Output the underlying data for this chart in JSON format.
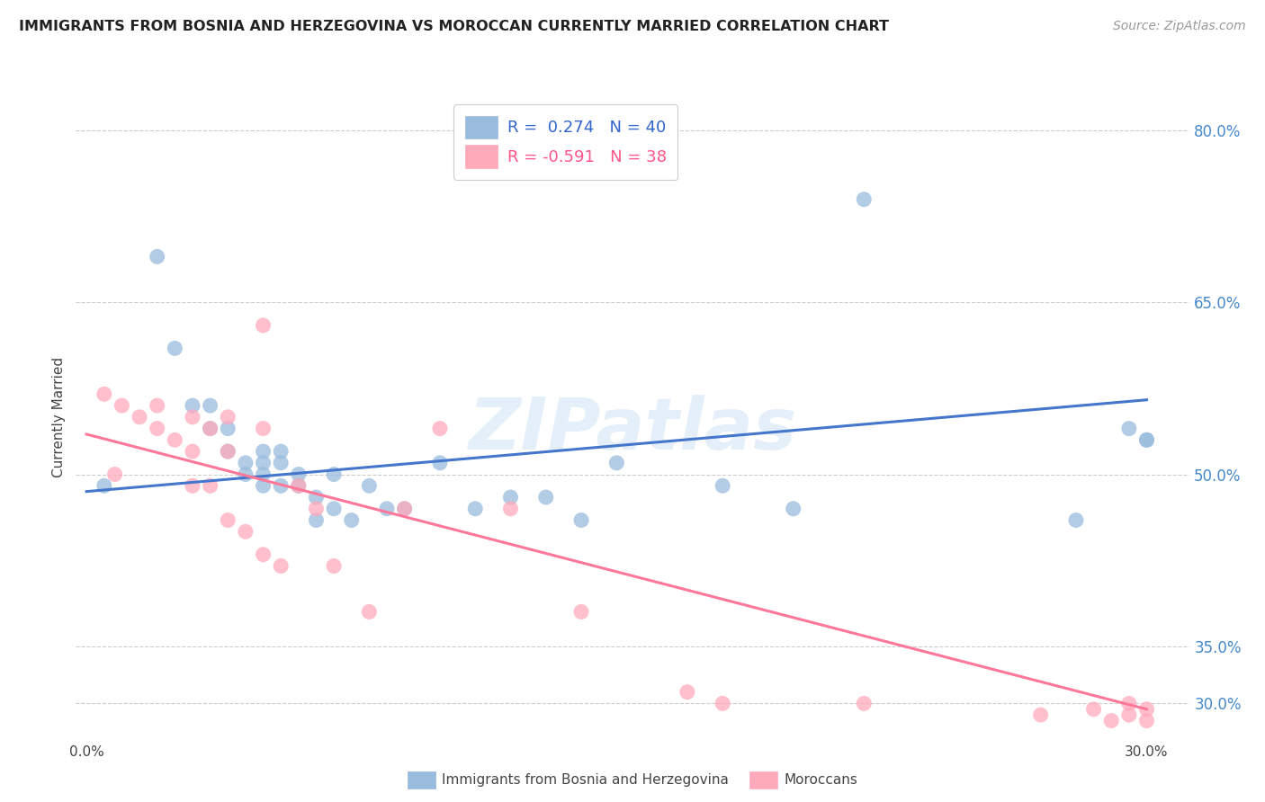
{
  "title": "IMMIGRANTS FROM BOSNIA AND HERZEGOVINA VS MOROCCAN CURRENTLY MARRIED CORRELATION CHART",
  "source": "Source: ZipAtlas.com",
  "ylabel": "Currently Married",
  "ylim": [
    0.27,
    0.83
  ],
  "xlim": [
    -0.003,
    0.312
  ],
  "yticks": [
    0.3,
    0.35,
    0.5,
    0.65,
    0.8
  ],
  "ytick_labels": [
    "30.0%",
    "35.0%",
    "50.0%",
    "65.0%",
    "80.0%"
  ],
  "xticks": [
    0.0,
    0.05,
    0.1,
    0.15,
    0.2,
    0.25,
    0.3
  ],
  "xtick_labels": [
    "0.0%",
    "",
    "",
    "",
    "",
    "",
    "30.0%"
  ],
  "color_blue": "#99BBDD",
  "color_pink": "#FFAABB",
  "line_blue": "#4477CC",
  "line_pink": "#FF7799",
  "watermark": "ZIPatlas",
  "blue_scatter_x": [
    0.005,
    0.02,
    0.025,
    0.03,
    0.035,
    0.035,
    0.04,
    0.04,
    0.045,
    0.045,
    0.05,
    0.05,
    0.05,
    0.05,
    0.055,
    0.055,
    0.055,
    0.06,
    0.06,
    0.065,
    0.065,
    0.07,
    0.07,
    0.075,
    0.08,
    0.085,
    0.09,
    0.1,
    0.11,
    0.12,
    0.13,
    0.14,
    0.15,
    0.18,
    0.2,
    0.22,
    0.28,
    0.295,
    0.3,
    0.3
  ],
  "blue_scatter_y": [
    0.49,
    0.69,
    0.61,
    0.56,
    0.56,
    0.54,
    0.54,
    0.52,
    0.51,
    0.5,
    0.52,
    0.51,
    0.5,
    0.49,
    0.52,
    0.51,
    0.49,
    0.5,
    0.49,
    0.48,
    0.46,
    0.5,
    0.47,
    0.46,
    0.49,
    0.47,
    0.47,
    0.51,
    0.47,
    0.48,
    0.48,
    0.46,
    0.51,
    0.49,
    0.47,
    0.74,
    0.46,
    0.54,
    0.53,
    0.53
  ],
  "pink_scatter_x": [
    0.005,
    0.008,
    0.01,
    0.015,
    0.02,
    0.02,
    0.025,
    0.03,
    0.03,
    0.03,
    0.035,
    0.035,
    0.04,
    0.04,
    0.04,
    0.045,
    0.05,
    0.05,
    0.05,
    0.055,
    0.06,
    0.065,
    0.07,
    0.08,
    0.09,
    0.1,
    0.12,
    0.14,
    0.17,
    0.18,
    0.22,
    0.27,
    0.285,
    0.29,
    0.295,
    0.3,
    0.295,
    0.3
  ],
  "pink_scatter_y": [
    0.57,
    0.5,
    0.56,
    0.55,
    0.56,
    0.54,
    0.53,
    0.55,
    0.52,
    0.49,
    0.54,
    0.49,
    0.55,
    0.52,
    0.46,
    0.45,
    0.63,
    0.54,
    0.43,
    0.42,
    0.49,
    0.47,
    0.42,
    0.38,
    0.47,
    0.54,
    0.47,
    0.38,
    0.31,
    0.3,
    0.3,
    0.29,
    0.295,
    0.285,
    0.29,
    0.285,
    0.3,
    0.295
  ],
  "blue_line_x": [
    0.0,
    0.3
  ],
  "blue_line_y": [
    0.485,
    0.565
  ],
  "pink_line_x": [
    0.0,
    0.3
  ],
  "pink_line_y": [
    0.535,
    0.295
  ]
}
